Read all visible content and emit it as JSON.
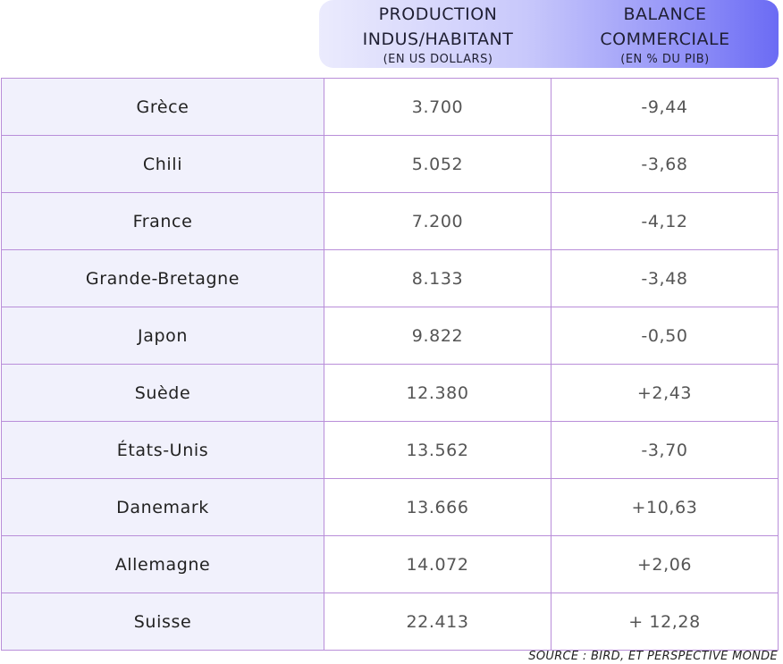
{
  "header": {
    "production": {
      "line1": "PRODUCTION",
      "line2": "INDUS/HABITANT",
      "unit": "(EN US DOLLARS)"
    },
    "balance": {
      "line1": "BALANCE",
      "line2": "COMMERCIALE",
      "unit": "(EN % DU PIB)"
    }
  },
  "rows": [
    {
      "country": "Grèce",
      "production": "3.700",
      "balance": "-9,44"
    },
    {
      "country": "Chili",
      "production": "5.052",
      "balance": "-3,68"
    },
    {
      "country": "France",
      "production": "7.200",
      "balance": "-4,12"
    },
    {
      "country": "Grande-Bretagne",
      "production": "8.133",
      "balance": "-3,48"
    },
    {
      "country": "Japon",
      "production": "9.822",
      "balance": "-0,50"
    },
    {
      "country": "Suède",
      "production": "12.380",
      "balance": "+2,43"
    },
    {
      "country": "États-Unis",
      "production": "13.562",
      "balance": "-3,70"
    },
    {
      "country": "Danemark",
      "production": "13.666",
      "balance": "+10,63"
    },
    {
      "country": "Allemagne",
      "production": "14.072",
      "balance": "+2,06"
    },
    {
      "country": "Suisse",
      "production": "22.413",
      "balance": "+ 12,28"
    }
  ],
  "source": "SOURCE : BIRD, ET PERSPECTIVE MONDE",
  "colors": {
    "header_gradient_start": "#ebebfd",
    "header_gradient_end": "#6b6bf4",
    "grid_border": "#b98ed9",
    "country_cell_bg": "#f1f1fc"
  }
}
